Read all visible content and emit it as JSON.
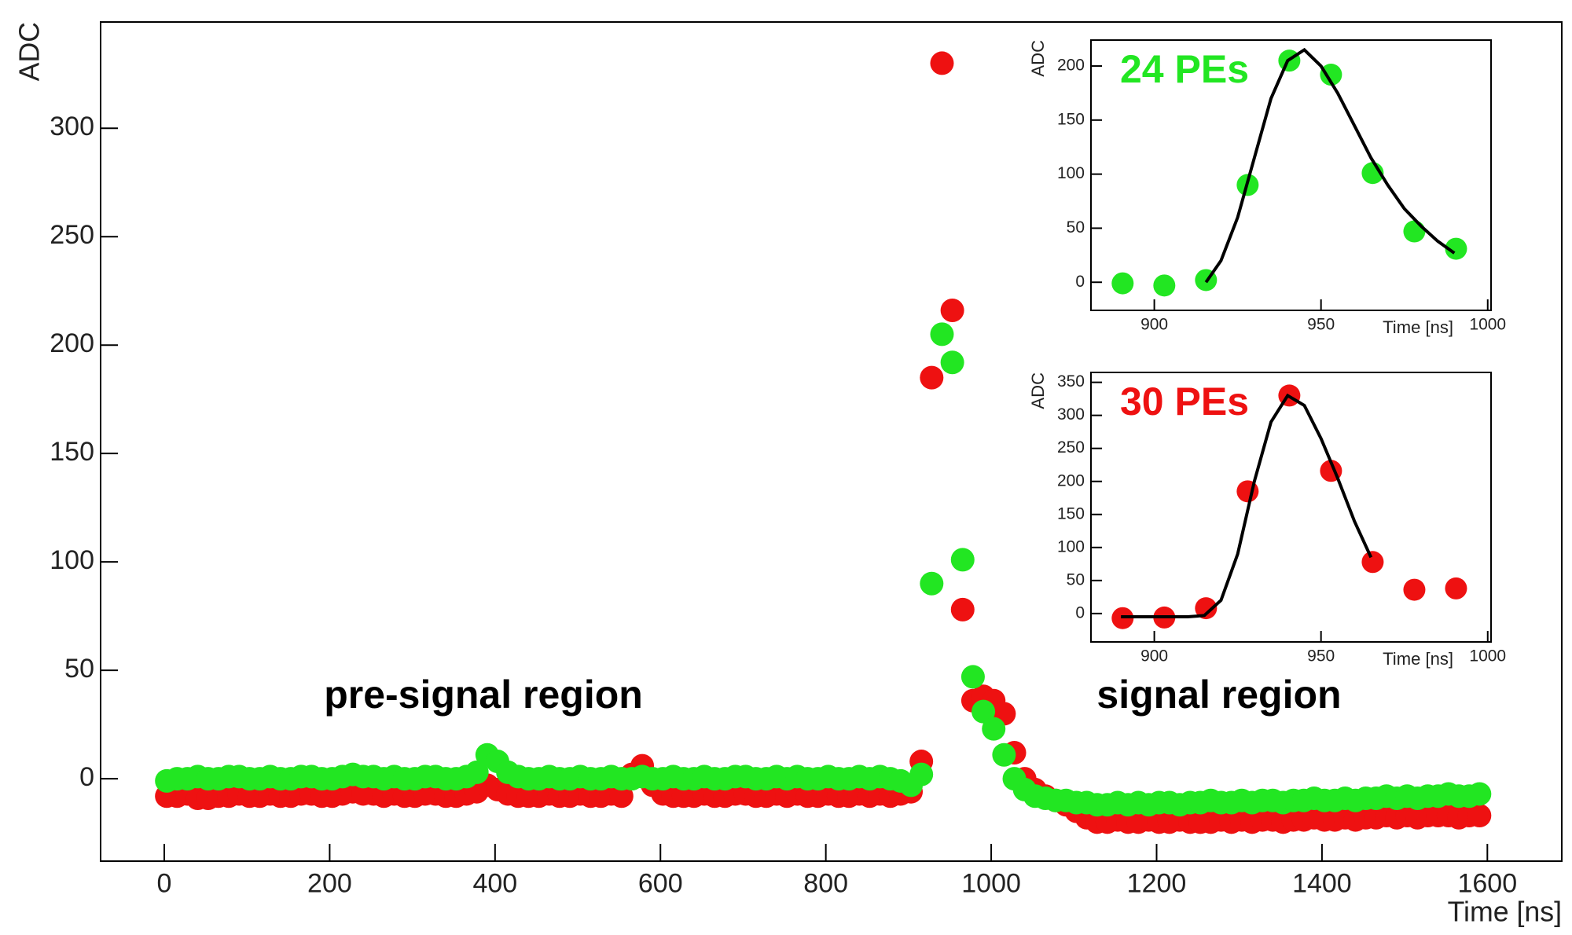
{
  "chart_data": [
    {
      "type": "scatter",
      "xlabel": "Time [ns]",
      "ylabel": "ADC",
      "annotations": [
        "pre-signal region",
        "signal region"
      ],
      "xlim": [
        -77,
        1690
      ],
      "ylim": [
        -38,
        349
      ],
      "xticks": [
        0,
        200,
        400,
        600,
        800,
        1000,
        1200,
        1400,
        1600
      ],
      "yticks": [
        0,
        50,
        100,
        150,
        200,
        250,
        300
      ],
      "x": [
        3,
        15.5,
        28,
        40.5,
        53,
        65.5,
        78,
        90.5,
        103,
        115.5,
        128,
        140.5,
        153,
        165.5,
        178,
        190.5,
        203,
        215.5,
        228,
        240.5,
        253,
        265.5,
        278,
        290.5,
        303,
        315.5,
        328,
        340.5,
        353,
        365.5,
        378,
        390.5,
        403,
        415.5,
        428,
        440.5,
        453,
        465.5,
        478,
        490.5,
        503,
        515.5,
        528,
        540.5,
        553,
        565.5,
        578,
        590.5,
        603,
        615.5,
        628,
        640.5,
        653,
        665.5,
        678,
        690.5,
        703,
        715.5,
        728,
        740.5,
        753,
        765.5,
        778,
        790.5,
        803,
        815.5,
        828,
        840.5,
        853,
        865.5,
        878,
        890.5,
        903,
        915.5,
        928,
        940.5,
        953,
        965.5,
        978,
        990.5,
        1003,
        1015.5,
        1028,
        1040.5,
        1053,
        1065.5,
        1078,
        1090.5,
        1103,
        1115.5,
        1128,
        1140.5,
        1153,
        1165.5,
        1178,
        1190.5,
        1203,
        1215.5,
        1228,
        1240.5,
        1253,
        1265.5,
        1278,
        1290.5,
        1303,
        1315.5,
        1328,
        1340.5,
        1353,
        1365.5,
        1378,
        1390.5,
        1403,
        1415.5,
        1428,
        1440.5,
        1453,
        1465.5,
        1478,
        1490.5,
        1503,
        1515.5,
        1528,
        1540.5,
        1553,
        1565.5,
        1578,
        1590.5
      ],
      "series": [
        {
          "color": "#ee1111",
          "values": [
            -8,
            -8,
            -7,
            -9,
            -9,
            -8,
            -8,
            -7,
            -8,
            -8,
            -7,
            -8,
            -8,
            -7,
            -7,
            -8,
            -8,
            -7,
            -6,
            -7,
            -7,
            -8,
            -7,
            -8,
            -8,
            -7,
            -7,
            -8,
            -8,
            -7,
            -6,
            -3,
            -5,
            -7,
            -8,
            -8,
            -8,
            -7,
            -8,
            -8,
            -7,
            -8,
            -8,
            -7,
            -8,
            2,
            6,
            -3,
            -7,
            -8,
            -8,
            -8,
            -7,
            -8,
            -8,
            -7,
            -7,
            -8,
            -8,
            -7,
            -8,
            -7,
            -8,
            -8,
            -7,
            -8,
            -8,
            -7,
            -8,
            -7,
            -8,
            -7,
            -6,
            8,
            185,
            330,
            216,
            78,
            36,
            38,
            36,
            30,
            12,
            0,
            -5,
            -8,
            -10,
            -12,
            -15,
            -18,
            -20,
            -20,
            -19,
            -20,
            -20,
            -19,
            -20,
            -20,
            -19,
            -20,
            -20,
            -20,
            -19,
            -20,
            -19,
            -20,
            -19,
            -19,
            -20,
            -19,
            -19,
            -18,
            -19,
            -19,
            -18,
            -19,
            -18,
            -18,
            -17,
            -18,
            -17,
            -18,
            -17,
            -17,
            -17,
            -18,
            -17,
            -17
          ]
        },
        {
          "color": "#22e622",
          "values": [
            -1,
            0,
            0,
            1,
            0,
            0,
            1,
            1,
            0,
            0,
            1,
            0,
            0,
            1,
            1,
            0,
            0,
            1,
            2,
            1,
            1,
            0,
            1,
            0,
            0,
            1,
            1,
            0,
            0,
            1,
            3,
            11,
            8,
            3,
            1,
            0,
            0,
            1,
            0,
            0,
            1,
            0,
            0,
            1,
            0,
            0,
            1,
            0,
            0,
            1,
            0,
            0,
            1,
            0,
            0,
            1,
            1,
            0,
            0,
            1,
            0,
            1,
            0,
            0,
            1,
            0,
            0,
            1,
            0,
            1,
            0,
            -1,
            -3,
            2,
            90,
            205,
            192,
            101,
            47,
            31,
            23,
            11,
            0,
            -5,
            -8,
            -9,
            -10,
            -10,
            -11,
            -11,
            -12,
            -12,
            -11,
            -12,
            -11,
            -12,
            -11,
            -11,
            -12,
            -11,
            -11,
            -10,
            -11,
            -11,
            -10,
            -11,
            -10,
            -10,
            -11,
            -10,
            -10,
            -9,
            -10,
            -10,
            -9,
            -10,
            -9,
            -9,
            -8,
            -9,
            -8,
            -9,
            -8,
            -8,
            -7,
            -8,
            -8,
            -7
          ]
        }
      ]
    },
    {
      "type": "scatter",
      "xlabel": "Time [ns]",
      "ylabel": "ADC",
      "annotations": [
        "24 PEs"
      ],
      "annotation_color": "#22e622",
      "xlim": [
        881,
        1001
      ],
      "ylim": [
        -26,
        224
      ],
      "xticks": [
        900,
        950,
        1000
      ],
      "yticks": [
        0,
        50,
        100,
        150,
        200
      ],
      "x": [
        890.5,
        903,
        915.5,
        928,
        940.5,
        953,
        965.5,
        978,
        990.5
      ],
      "series": [
        {
          "color": "#22e622",
          "values": [
            -1,
            -3,
            2,
            90,
            205,
            192,
            101,
            47,
            31
          ]
        }
      ],
      "fit": {
        "color": "#000000",
        "x": [
          915.5,
          920,
          925,
          930,
          935,
          940,
          945,
          950,
          955,
          960,
          965,
          970,
          975,
          980,
          985,
          990
        ],
        "values": [
          0,
          20,
          60,
          115,
          170,
          205,
          215,
          200,
          175,
          145,
          115,
          90,
          68,
          52,
          38,
          27
        ]
      }
    },
    {
      "type": "scatter",
      "xlabel": "Time [ns]",
      "ylabel": "ADC",
      "annotations": [
        "30 PEs"
      ],
      "annotation_color": "#ee1111",
      "xlim": [
        881,
        1001
      ],
      "ylim": [
        -43,
        365
      ],
      "xticks": [
        900,
        950,
        1000
      ],
      "yticks": [
        0,
        50,
        100,
        150,
        200,
        250,
        300,
        350
      ],
      "x": [
        890.5,
        903,
        915.5,
        928,
        940.5,
        953,
        965.5,
        978,
        990.5
      ],
      "series": [
        {
          "color": "#ee1111",
          "values": [
            -7,
            -6,
            8,
            185,
            330,
            216,
            78,
            36,
            38
          ]
        }
      ],
      "fit": {
        "color": "#000000",
        "x": [
          890,
          900,
          910,
          915,
          920,
          925,
          930,
          935,
          940,
          945,
          950,
          955,
          960,
          965
        ],
        "values": [
          -5,
          -5,
          -5,
          -3,
          20,
          90,
          200,
          290,
          330,
          315,
          265,
          205,
          140,
          85
        ]
      }
    }
  ]
}
